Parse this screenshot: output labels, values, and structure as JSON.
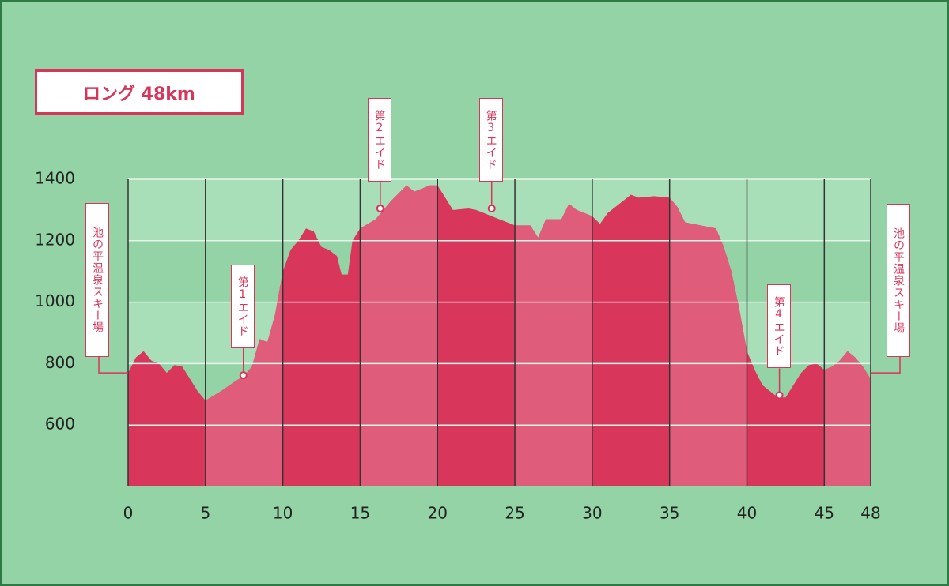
{
  "chart_data": {
    "type": "area",
    "title": "ロング 48km",
    "x": [
      0,
      0.5,
      1,
      1.5,
      2,
      2.5,
      3,
      3.5,
      4,
      4.5,
      5,
      6,
      7,
      7.5,
      8,
      8.5,
      9,
      9.5,
      10,
      10.5,
      11,
      11.5,
      12,
      12.5,
      13,
      13.5,
      13.8,
      14.2,
      14.5,
      15,
      16,
      17,
      18,
      18.5,
      19,
      19.5,
      20,
      20.5,
      21,
      22,
      22.5,
      23,
      24,
      25,
      26,
      26.5,
      27,
      28,
      28.5,
      29,
      30,
      30.5,
      31,
      32,
      32.5,
      33,
      34,
      35,
      35.5,
      36,
      37,
      38,
      38.5,
      39,
      39.5,
      40,
      40.5,
      41,
      41.5,
      42,
      42.5,
      43,
      43.5,
      44,
      44.5,
      45,
      45.5,
      46,
      46.5,
      47,
      47.5,
      48
    ],
    "values": [
      770,
      820,
      840,
      810,
      800,
      770,
      795,
      790,
      750,
      710,
      680,
      710,
      745,
      760,
      790,
      880,
      870,
      960,
      1100,
      1170,
      1200,
      1240,
      1230,
      1180,
      1170,
      1150,
      1090,
      1090,
      1200,
      1240,
      1270,
      1330,
      1380,
      1360,
      1370,
      1380,
      1380,
      1340,
      1300,
      1305,
      1300,
      1290,
      1270,
      1250,
      1250,
      1210,
      1270,
      1270,
      1320,
      1300,
      1280,
      1255,
      1290,
      1330,
      1350,
      1340,
      1345,
      1340,
      1310,
      1260,
      1250,
      1240,
      1180,
      1100,
      980,
      840,
      780,
      730,
      710,
      690,
      690,
      730,
      770,
      795,
      800,
      780,
      790,
      810,
      840,
      820,
      790,
      750
    ],
    "xlim": [
      0,
      48
    ],
    "xticks": [
      0,
      5,
      10,
      15,
      20,
      25,
      30,
      35,
      40,
      45,
      48
    ],
    "ylim": [
      400,
      1400
    ],
    "yticks": [
      600,
      800,
      1000,
      1200,
      1400
    ],
    "colors": [
      "#d8375b",
      "#df5c7b"
    ],
    "aid_stations": [
      {
        "label": "第1エイド",
        "km": 7.45,
        "elevation": 762
      },
      {
        "label": "第2エイド",
        "km": 16.3,
        "elevation": 1305
      },
      {
        "label": "第3エイド",
        "km": 23.5,
        "elevation": 1305
      },
      {
        "label": "第4エイド",
        "km": 42.1,
        "elevation": 697
      }
    ],
    "start_label": "池の平温泉スキー場",
    "finish_label": "池の平温泉スキー場"
  }
}
